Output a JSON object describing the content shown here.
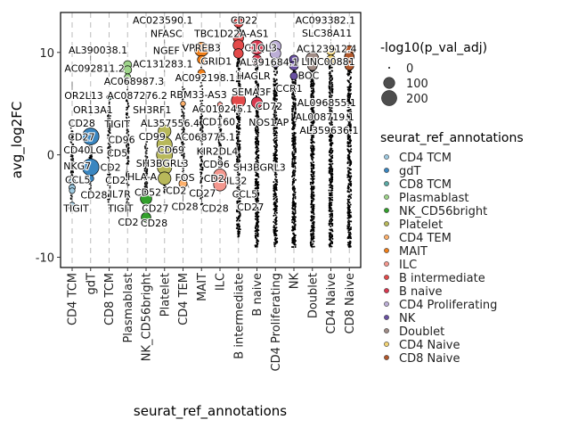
{
  "chart_data": {
    "type": "scatter",
    "title": "",
    "xlabel": "seurat_ref_annotations",
    "ylabel": "avg_log2FC",
    "ylim": [
      -11,
      13.9
    ],
    "yticks": [
      -10,
      0,
      10
    ],
    "ytick_labels": [
      "-10",
      "0",
      "10"
    ],
    "grid": "vertical dashed lines at each category",
    "categories": [
      "CD4 TCM",
      "gdT",
      "CD8 TCM",
      "Plasmablast",
      "NK_CD56bright",
      "Platelet",
      "CD4 TEM",
      "MAIT",
      "ILC",
      "B intermediate",
      "B naive",
      "CD4 Proliferating",
      "NK",
      "Doublet",
      "CD4 Naive",
      "CD8 Naive"
    ],
    "colors": [
      "#9ecae1",
      "#3a86c0",
      "#5aa9a4",
      "#9ed48a",
      "#33a02c",
      "#b8b85a",
      "#fdb06b",
      "#f07f1a",
      "#f4978e",
      "#e34a4a",
      "#d9384f",
      "#bcaed6",
      "#6a51a3",
      "#a08c86",
      "#f2d374",
      "#b2582b"
    ],
    "background_ranges": [
      [
        -5,
        3
      ],
      [
        -4,
        3
      ],
      [
        -5.5,
        7
      ],
      [
        -6.5,
        8.5
      ],
      [
        -7,
        2
      ],
      [
        -4,
        3
      ],
      [
        -4,
        7
      ],
      [
        -6,
        9
      ],
      [
        -4,
        5
      ],
      [
        -8,
        13
      ],
      [
        -9,
        10.5
      ],
      [
        -9,
        10.5
      ],
      [
        -9,
        9.5
      ],
      [
        -9,
        9.5
      ],
      [
        -9,
        10.2
      ],
      [
        -9,
        10.3
      ]
    ],
    "highlighted": [
      {
        "cat": 0,
        "y": [
          -2.6,
          -3.2,
          -3.5,
          -4.9,
          -5.2
        ],
        "p": [
          20,
          20,
          15,
          15,
          15
        ]
      },
      {
        "cat": 1,
        "y": [
          1.8,
          -1.2,
          -2.3
        ],
        "p": [
          220,
          220,
          20
        ]
      },
      {
        "cat": 2,
        "y": [
          5.6
        ],
        "p": [
          10
        ]
      },
      {
        "cat": 3,
        "y": [
          8.8,
          8.3,
          7.6
        ],
        "p": [
          40,
          40,
          20
        ]
      },
      {
        "cat": 4,
        "y": [
          -4.3,
          -6.1
        ],
        "p": [
          90,
          60
        ]
      },
      {
        "cat": 5,
        "y": [
          2.3,
          1.0,
          0,
          -1.2,
          -2.3
        ],
        "p": [
          120,
          180,
          200,
          160,
          120
        ]
      },
      {
        "cat": 6,
        "y": [
          5.0,
          -2.8
        ],
        "p": [
          10,
          40
        ]
      },
      {
        "cat": 7,
        "y": [
          10.3,
          9.3,
          8.0
        ],
        "p": [
          150,
          40,
          30
        ]
      },
      {
        "cat": 8,
        "y": [
          4.9,
          -2.0,
          -2.9
        ],
        "p": [
          10,
          120,
          120
        ]
      },
      {
        "cat": 9,
        "y": [
          12.9,
          11.4,
          10.7,
          9.9,
          5.3
        ],
        "p": [
          60,
          70,
          80,
          60,
          150
        ]
      },
      {
        "cat": 10,
        "y": [
          10.5,
          9.3,
          5.1
        ],
        "p": [
          150,
          60,
          80
        ]
      },
      {
        "cat": 11,
        "y": [
          10.6,
          9.9,
          9.0
        ],
        "p": [
          90,
          80,
          60
        ]
      },
      {
        "cat": 12,
        "y": [
          9.3,
          8.7,
          7.7
        ],
        "p": [
          50,
          50,
          30
        ]
      },
      {
        "cat": 13,
        "y": [
          9.4,
          8.7
        ],
        "p": [
          120,
          60
        ]
      },
      {
        "cat": 14,
        "y": [
          10.2,
          9.3
        ],
        "p": [
          60,
          50
        ]
      },
      {
        "cat": 15,
        "y": [
          10.2,
          9.6,
          8.7
        ],
        "p": [
          60,
          60,
          50
        ]
      }
    ],
    "annotations": [
      {
        "text": "AC023590.1",
        "x": 4.7,
        "y": 13.4
      },
      {
        "text": "CD22",
        "x": 9.1,
        "y": 13.4
      },
      {
        "text": "AC093382.1",
        "x": 13.5,
        "y": 13.4
      },
      {
        "text": "TBC1D22A-AS1",
        "x": 8.6,
        "y": 12.2
      },
      {
        "text": "SLC38A11",
        "x": 14.2,
        "y": 12.4
      },
      {
        "text": "NFASC",
        "x": 4.9,
        "y": 12.1
      },
      {
        "text": "VPREB3",
        "x": 7.0,
        "y": 11.0
      },
      {
        "text": "C1QL3",
        "x": 10.2,
        "y": 11.0
      },
      {
        "text": "AC123912.4",
        "x": 14.4,
        "y": 11.4
      },
      {
        "text": "NGEF",
        "x": 5.2,
        "y": 10.3
      },
      {
        "text": "LINC00881",
        "x": 14.3,
        "y": 10.5
      },
      {
        "text": "AL390038.1",
        "x": 1.4,
        "y": 10.2
      },
      {
        "text": "GRID1",
        "x": 7.8,
        "y": 9.9
      },
      {
        "text": "AL391684.1",
        "x": 12.0,
        "y": 10.2
      },
      {
        "text": "AC092811.2",
        "x": 0.3,
        "y": 9.0
      },
      {
        "text": "AC068987.3",
        "x": 2.9,
        "y": 9.0
      },
      {
        "text": "AC131283.1",
        "x": 4.8,
        "y": 9.0
      },
      {
        "text": "HAGLR",
        "x": 9.6,
        "y": 9.0
      },
      {
        "text": "BOC",
        "x": 12.8,
        "y": 9.3
      },
      {
        "text": "OR2L13",
        "x": 0.4,
        "y": 7.9
      },
      {
        "text": "AC087276.2",
        "x": 3.3,
        "y": 7.9
      },
      {
        "text": "AC092198.1",
        "x": 7.2,
        "y": 7.9
      },
      {
        "text": "CCR1",
        "x": 11.3,
        "y": 7.9
      },
      {
        "text": "AL096855.1",
        "x": 14.0,
        "y": 8.0
      },
      {
        "text": "OR13A1",
        "x": 0.9,
        "y": 6.9
      },
      {
        "text": "SH3RF1",
        "x": 4.1,
        "y": 6.9
      },
      {
        "text": "RBM33-AS3",
        "x": 6.2,
        "y": 6.9
      },
      {
        "text": "SEMA3F",
        "x": 9.7,
        "y": 6.9
      },
      {
        "text": "AL008719.1",
        "x": 13.9,
        "y": 7.0
      },
      {
        "text": "AL357556.4",
        "x": 5.3,
        "y": 5.8
      },
      {
        "text": "AC010245.1",
        "x": 7.9,
        "y": 5.8
      },
      {
        "text": "NOS1AP",
        "x": 11.1,
        "y": 5.8
      },
      {
        "text": "TIGIT",
        "x": 2.2,
        "y": 5.1
      },
      {
        "text": "CD72",
        "x": 9.5,
        "y": 4.7
      },
      {
        "text": "AL359636.1",
        "x": 13.9,
        "y": 4.7
      },
      {
        "text": "CD28",
        "x": 0.3,
        "y": 4.0
      },
      {
        "text": "CD99",
        "x": 4.1,
        "y": 4.3
      },
      {
        "text": "AC068775.1",
        "x": 6.1,
        "y": 4.7
      },
      {
        "text": "KIR2DL4",
        "x": 7.4,
        "y": 3.4
      },
      {
        "text": "CD27",
        "x": 0.5,
        "y": 2.9
      },
      {
        "text": "CD96",
        "x": 2.9,
        "y": 2.8
      },
      {
        "text": "CD69",
        "x": 4.9,
        "y": 2.7
      },
      {
        "text": "CD160",
        "x": 7.3,
        "y": 2.1
      },
      {
        "text": "CD5",
        "x": 2.0,
        "y": 1.6
      },
      {
        "text": "SH3BGRL3",
        "x": 4.0,
        "y": 1.6
      },
      {
        "text": "CD96",
        "x": 7.8,
        "y": 1.0
      },
      {
        "text": "CD40LG",
        "x": 0.2,
        "y": 1.0
      },
      {
        "text": "HLA-A",
        "x": 3.8,
        "y": 0.6
      },
      {
        "text": "FOS",
        "x": 6.1,
        "y": 0.5
      },
      {
        "text": "CD2",
        "x": 2.3,
        "y": 0.1
      },
      {
        "text": "NKG7",
        "x": 0.05,
        "y": -0.2
      },
      {
        "text": "CD2",
        "x": 5.4,
        "y": -0.6
      },
      {
        "text": "SH3BGRL3",
        "x": 8.8,
        "y": -0.1
      },
      {
        "text": "CD2",
        "x": 3.0,
        "y": -1.0
      },
      {
        "text": "CD2",
        "x": 7.9,
        "y": -1.4
      },
      {
        "text": "IL32",
        "x": 8.9,
        "y": -1.4
      },
      {
        "text": "CCL5",
        "x": 0.3,
        "y": -1.9
      },
      {
        "text": "IL7R",
        "x": 2.6,
        "y": -1.9
      },
      {
        "text": "CD52",
        "x": 4.1,
        "y": -2.1
      },
      {
        "text": "CD27",
        "x": 6.2,
        "y": -2.2
      },
      {
        "text": "CCL5",
        "x": 8.9,
        "y": -2.4
      },
      {
        "text": "CD28",
        "x": 1.4,
        "y": -3.0
      },
      {
        "text": "CD28",
        "x": 6.1,
        "y": -3.5
      },
      {
        "text": "CD28",
        "x": 7.3,
        "y": -3.4
      },
      {
        "text": "CD27",
        "x": 9.0,
        "y": -3.6
      },
      {
        "text": "TIGIT",
        "x": 0.2,
        "y": -4.1
      },
      {
        "text": "TIGIT",
        "x": 2.6,
        "y": -4.1
      },
      {
        "text": "CD27",
        "x": 4.6,
        "y": -5.1
      },
      {
        "text": "CD2",
        "x": 2.6,
        "y": -5.6
      },
      {
        "text": "CD28",
        "x": 4.0,
        "y": -6.7
      }
    ],
    "size_legend": {
      "title": "-log10(p_val_adj)",
      "values": [
        0,
        100,
        200
      ],
      "labels": [
        "0",
        "100",
        "200"
      ]
    },
    "color_legend": {
      "title": "seurat_ref_annotations",
      "placement": "right"
    }
  }
}
